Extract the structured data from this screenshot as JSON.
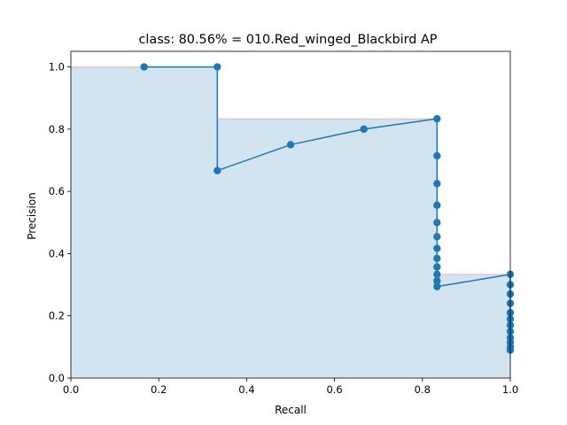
{
  "chart_data": {
    "type": "line",
    "title": "class: 80.56% = 010.Red_winged_Blackbird AP",
    "xlabel": "Recall",
    "ylabel": "Precision",
    "xlim": [
      0.0,
      1.0
    ],
    "ylim": [
      0.0,
      1.05
    ],
    "xticks": [
      "0.0",
      "0.2",
      "0.4",
      "0.6",
      "0.8",
      "1.0"
    ],
    "yticks": [
      "0.0",
      "0.2",
      "0.4",
      "0.6",
      "0.8",
      "1.0"
    ],
    "grid": false,
    "series": [
      {
        "kind": "precision-recall-curve",
        "color": "#1f77b4",
        "x": [
          0.1667,
          0.3333,
          0.3333,
          0.5,
          0.6667,
          0.8333,
          0.8333,
          0.8333,
          0.8333,
          0.8333,
          0.8333,
          0.8333,
          0.8333,
          0.8333,
          0.8333,
          0.8333,
          0.8333,
          1.0,
          1.0,
          1.0,
          1.0,
          1.0,
          1.0,
          1.0,
          1.0,
          1.0,
          1.0,
          1.0,
          1.0
        ],
        "y": [
          1.0,
          1.0,
          0.6667,
          0.75,
          0.8,
          0.8333,
          0.7143,
          0.625,
          0.5556,
          0.5,
          0.4545,
          0.4167,
          0.3846,
          0.3571,
          0.3333,
          0.3125,
          0.2941,
          0.3333,
          0.3,
          0.27,
          0.24,
          0.21,
          0.19,
          0.17,
          0.15,
          0.13,
          0.115,
          0.1,
          0.09
        ]
      },
      {
        "kind": "interpolated-precision-area",
        "color": "#1f77b4",
        "edge_color": "#ff0000",
        "x": [
          0.0,
          0.3333,
          0.3333,
          0.8333,
          0.8333,
          1.0,
          1.0
        ],
        "y": [
          1.0,
          1.0,
          0.8333,
          0.8333,
          0.3333,
          0.3333,
          0.0
        ]
      }
    ]
  }
}
